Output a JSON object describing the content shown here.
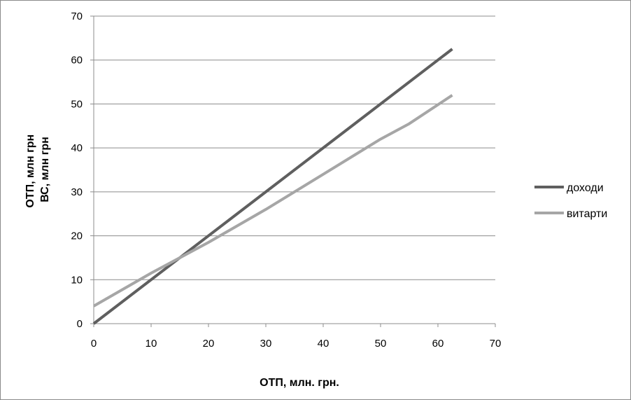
{
  "chart_data": {
    "type": "line",
    "title": "",
    "xlabel": "ОТП, млн. грн.",
    "ylabel_lines": [
      "ОТП, млн грн",
      "ВС, млн грн"
    ],
    "xlim": [
      0,
      70
    ],
    "ylim": [
      0,
      70
    ],
    "xticks": [
      0,
      10,
      20,
      30,
      40,
      50,
      60,
      70
    ],
    "yticks": [
      0,
      10,
      20,
      30,
      40,
      50,
      60,
      70
    ],
    "grid": "horizontal",
    "legend_position": "right",
    "series": [
      {
        "name": "доходи",
        "color": "#5f5f5f",
        "x": [
          0,
          62.5
        ],
        "y": [
          0,
          62.5
        ]
      },
      {
        "name": "витарти",
        "color": "#a6a6a6",
        "x": [
          0,
          10,
          20,
          30,
          40,
          50,
          55,
          62.5
        ],
        "y": [
          4,
          11.5,
          18.5,
          26,
          34,
          42,
          45.5,
          52
        ]
      }
    ]
  }
}
